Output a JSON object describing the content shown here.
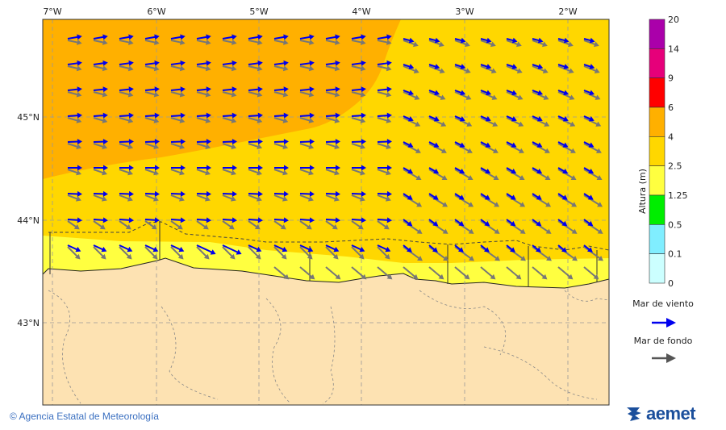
{
  "map": {
    "lon_labels": [
      "7°W",
      "6°W",
      "5°W",
      "4°W",
      "3°W",
      "2°W"
    ],
    "lat_labels": [
      "45°N",
      "44°N",
      "43°N"
    ],
    "colors": {
      "land": "#fde2b2",
      "sea_orange": "#ffb000",
      "sea_gold": "#ffd700",
      "sea_yellow": "#ffff40",
      "wind_arrow": "#0000ee",
      "swell_arrow": "#777777"
    }
  },
  "legend": {
    "title": "Altura (m)",
    "ticks": [
      "20",
      "14",
      "9",
      "6",
      "4",
      "2.5",
      "1.25",
      "0.5",
      "0.1",
      "0"
    ],
    "colors": [
      "#aa00aa",
      "#e6007a",
      "#ff0000",
      "#ffb000",
      "#ffd700",
      "#ffff40",
      "#00ee00",
      "#80eeff",
      "#ccffff"
    ],
    "wind_label": "Mar de viento",
    "swell_label": "Mar de fondo"
  },
  "footer": {
    "credit": "© Agencia Estatal de Meteorología",
    "logo": "aemet"
  }
}
